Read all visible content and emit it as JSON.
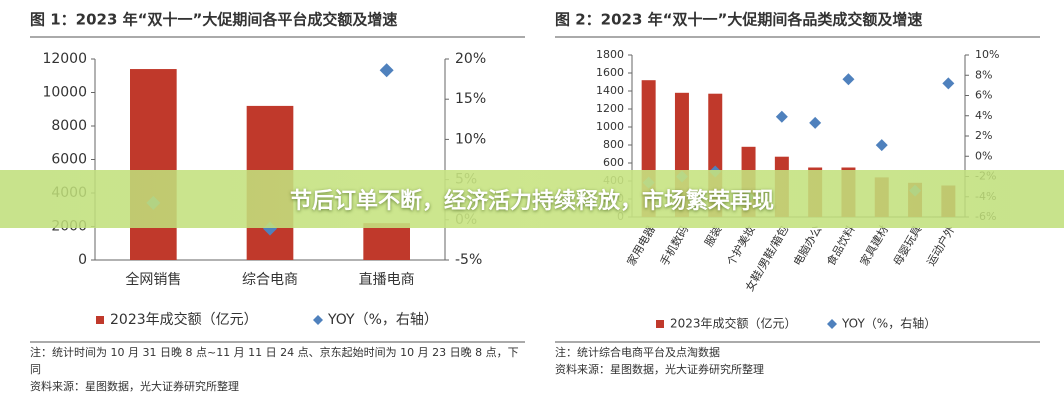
{
  "chart_data": [
    {
      "type": "bar",
      "title": "图 1：2023 年“双十一”大促期间各平台成交额及增速",
      "categories": [
        "全网销售",
        "综合电商",
        "直播电商"
      ],
      "series": [
        {
          "name": "2023年成交额（亿元）",
          "color": "#c0392b",
          "values": [
            11400,
            9200,
            2200
          ]
        },
        {
          "name": "YOY（%，右轴）",
          "color": "#4f81bd",
          "values": [
            2.1,
            -1.1,
            18.6
          ],
          "axis": "y2"
        }
      ],
      "ylim": [
        0,
        12000
      ],
      "yticks": [
        0,
        2000,
        4000,
        6000,
        8000,
        10000,
        12000
      ],
      "y2lim": [
        -5,
        20
      ],
      "y2ticks": [
        {
          "value": -5,
          "label": "-5%"
        },
        {
          "value": 0,
          "label": "0%"
        },
        {
          "value": 5,
          "label": "5%"
        },
        {
          "value": 10,
          "label": "10%"
        },
        {
          "value": 15,
          "label": "15%"
        },
        {
          "value": 20,
          "label": "20%"
        }
      ],
      "notes": [
        "注：统计时间为 10 月 31 日晚 8 点~11 月 11 日 24 点、京东起始时间为 10 月 23 日晚 8 点，下同",
        "资料来源：星图数据，光大证券研究所整理"
      ]
    },
    {
      "type": "bar",
      "title": "图 2：2023 年“双十一”大促期间各品类成交额及增速",
      "categories": [
        "家用电器",
        "手机数码",
        "服装",
        "个护美妆",
        "女鞋/男鞋/箱包",
        "电脑办公",
        "食品饮料",
        "家具建材",
        "母婴玩具",
        "运动户外"
      ],
      "series": [
        {
          "name": "2023年成交额（亿元）",
          "color": "#c0392b",
          "values": [
            1520,
            1380,
            1370,
            780,
            670,
            550,
            550,
            440,
            380,
            350
          ]
        },
        {
          "name": "YOY（%，右轴）",
          "color": "#4f81bd",
          "values": [
            -2.6,
            -2.0,
            -1.5,
            -4.0,
            3.9,
            3.3,
            7.6,
            1.1,
            -3.4,
            7.2
          ],
          "axis": "y2"
        }
      ],
      "ylim": [
        0,
        1800
      ],
      "yticks": [
        0,
        200,
        400,
        600,
        800,
        1000,
        1200,
        1400,
        1600,
        1800
      ],
      "y2lim": [
        -6,
        10
      ],
      "y2ticks": [
        {
          "value": -6,
          "label": "-6%"
        },
        {
          "value": -4,
          "label": "-4%"
        },
        {
          "value": -2,
          "label": "-2%"
        },
        {
          "value": 0,
          "label": "0%"
        },
        {
          "value": 2,
          "label": "2%"
        },
        {
          "value": 4,
          "label": "4%"
        },
        {
          "value": 6,
          "label": "6%"
        },
        {
          "value": 8,
          "label": "8%"
        },
        {
          "value": 10,
          "label": "10%"
        }
      ],
      "notes": [
        "注：统计综合电商平台及点淘数据",
        "资料来源：星图数据，光大证券研究所整理"
      ]
    }
  ],
  "banner": "节后订单不断，经济活力持续释放，市场繁荣再现"
}
